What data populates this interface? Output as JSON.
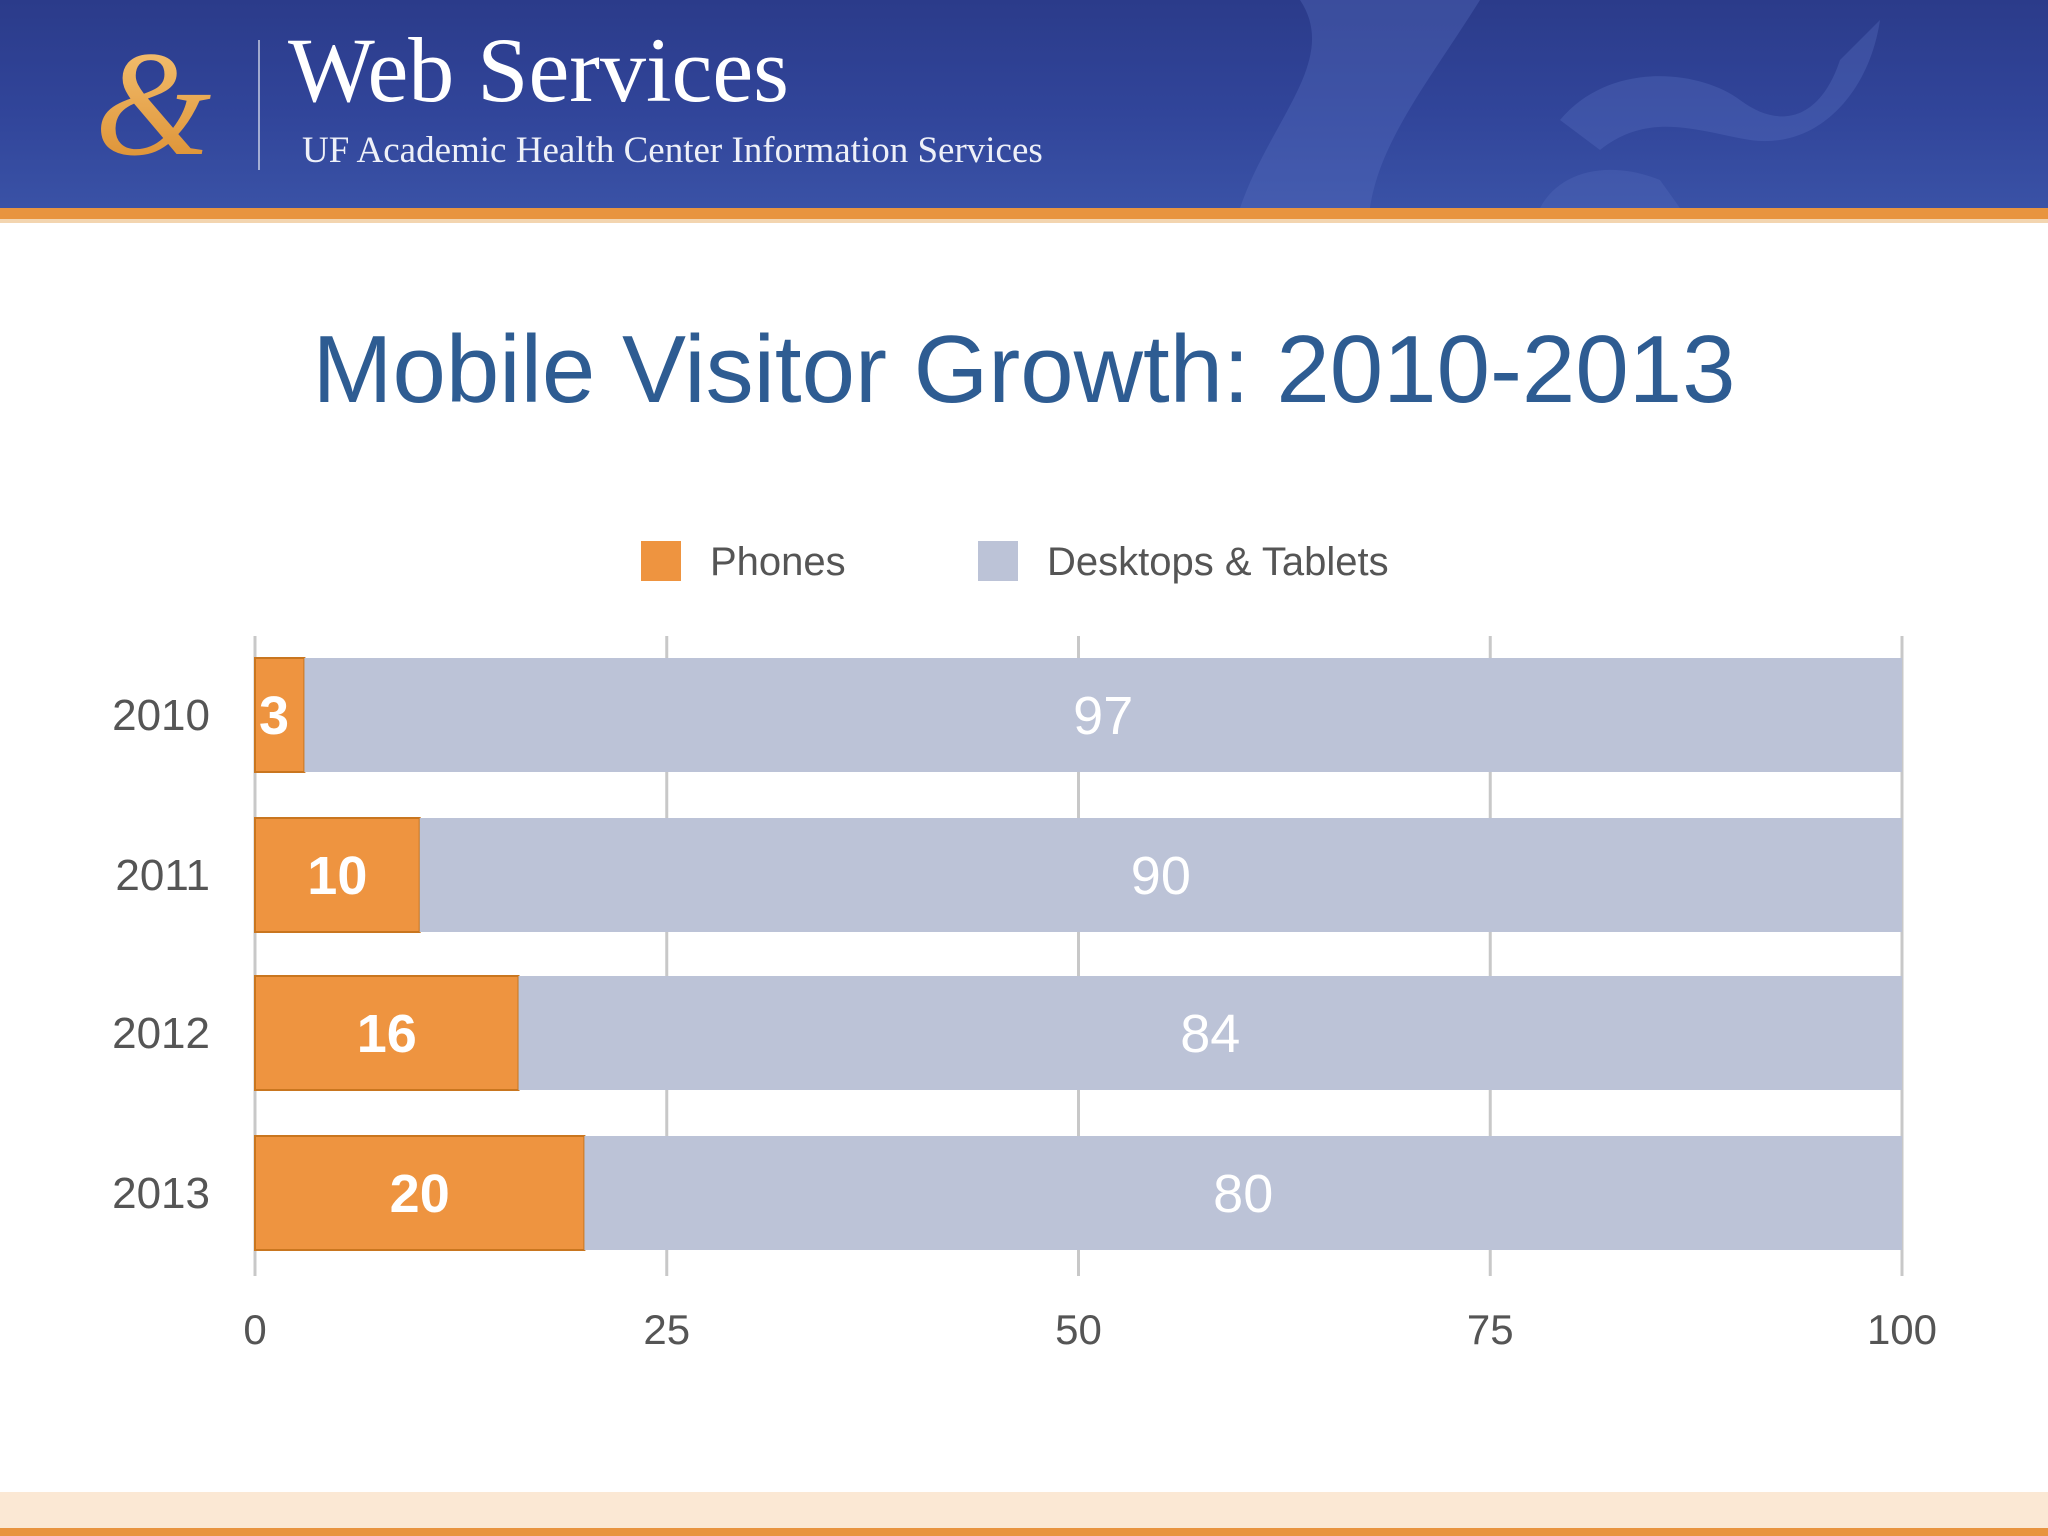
{
  "header": {
    "title": "Web Services",
    "subtitle": "UF Academic Health Center Information Services",
    "logo_icon": "ampersand-logo-icon"
  },
  "colors": {
    "banner": "#2f4294",
    "accent": "#e8943f",
    "phones": "#ee9440",
    "phones_border": "#c9761f",
    "desktops": "#bcc3d7",
    "title": "#2e5c92",
    "grid": "#c8c8c8",
    "axis_text": "#555555"
  },
  "legend": {
    "position": "top-center",
    "items": [
      {
        "label": "Phones",
        "color": "#ee9440"
      },
      {
        "label": "Desktops & Tablets",
        "color": "#bcc3d7"
      }
    ]
  },
  "chart_data": {
    "type": "bar",
    "orientation": "horizontal",
    "stacked": true,
    "title": "Mobile Visitor Growth: 2010-2013",
    "xlabel": "",
    "ylabel": "",
    "categories": [
      "2010",
      "2011",
      "2012",
      "2013"
    ],
    "series": [
      {
        "name": "Phones",
        "values": [
          3,
          10,
          16,
          20
        ]
      },
      {
        "name": "Desktops & Tablets",
        "values": [
          97,
          90,
          84,
          80
        ]
      }
    ],
    "xlim": [
      0,
      100
    ],
    "xticks": [
      0,
      25,
      50,
      75,
      100
    ],
    "grid": true,
    "data_labels": true
  }
}
